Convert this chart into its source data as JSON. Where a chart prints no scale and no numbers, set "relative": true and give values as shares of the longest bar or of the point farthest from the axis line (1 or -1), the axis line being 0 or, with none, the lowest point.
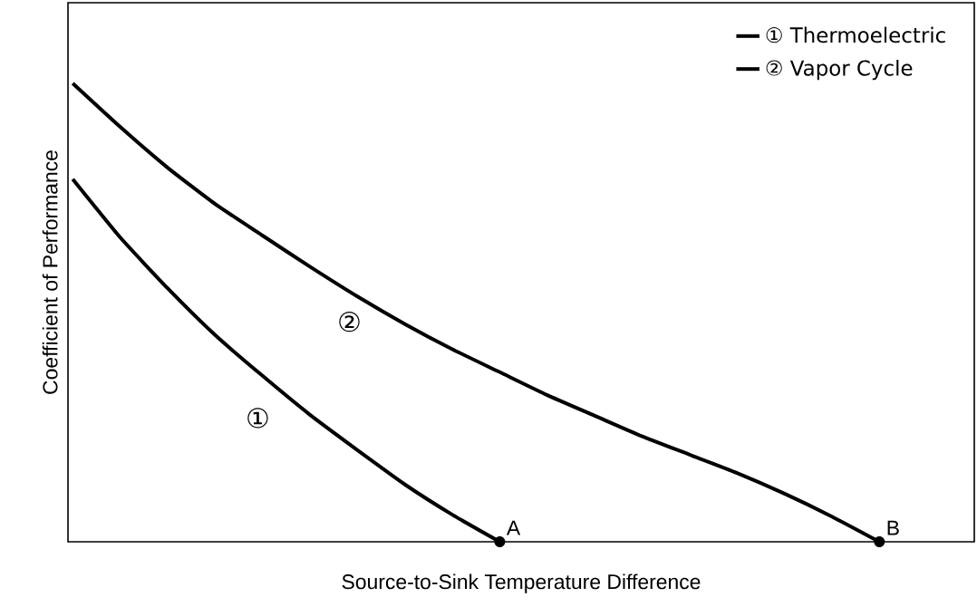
{
  "chart_data": {
    "type": "line",
    "relative": true,
    "xlabel": "Source-to-Sink Temperature Difference",
    "ylabel": "Coefficient of Performance",
    "categories": [
      null,
      null,
      null,
      null,
      null,
      null,
      null,
      null,
      null,
      null,
      null,
      null,
      null,
      null,
      null,
      null,
      null,
      null,
      null,
      null
    ],
    "series": [
      {
        "name": "① Thermoelectric",
        "color": "#000000",
        "values": [
          0.791,
          0.664,
          0.553,
          0.451,
          0.362,
          0.277,
          0.2,
          0.125,
          0.059,
          0,
          null,
          null,
          null,
          null,
          null,
          null,
          null,
          null,
          null,
          null
        ]
      },
      {
        "name": "② Vapor Cycle",
        "color": "#000000",
        "values": [
          1,
          0.905,
          0.816,
          0.737,
          0.668,
          0.6,
          0.535,
          0.475,
          0.42,
          0.37,
          0.32,
          0.275,
          0.23,
          0.19,
          0.15,
          0.105,
          0.055,
          0,
          null,
          null
        ]
      }
    ],
    "annotations": [
      "①",
      "②",
      "A",
      "B"
    ],
    "legend": "top right",
    "line_style": "solid",
    "marker": "none"
  }
}
